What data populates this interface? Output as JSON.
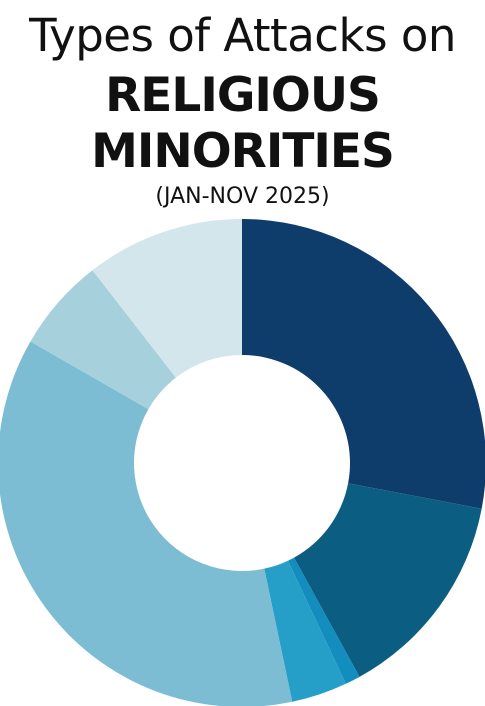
{
  "chart_data": {
    "type": "pie",
    "title_line1": "Types of Attacks on",
    "title_line2": "RELIGIOUS",
    "title_line3": "MINORITIES",
    "subtitle": "(JAN-NOV 2025)",
    "series": [
      {
        "value": 28.0,
        "color": "#0e3d6b"
      },
      {
        "value": 14.0,
        "color": "#0b5e82"
      },
      {
        "value": 1.0,
        "color": "#128dbd"
      },
      {
        "value": 3.7,
        "color": "#259fc8"
      },
      {
        "value": 36.6,
        "color": "#7dbdd4"
      },
      {
        "value": 6.2,
        "color": "#a5d0dc"
      },
      {
        "value": 10.5,
        "color": "#d2e6ec"
      }
    ],
    "legend": "none"
  }
}
